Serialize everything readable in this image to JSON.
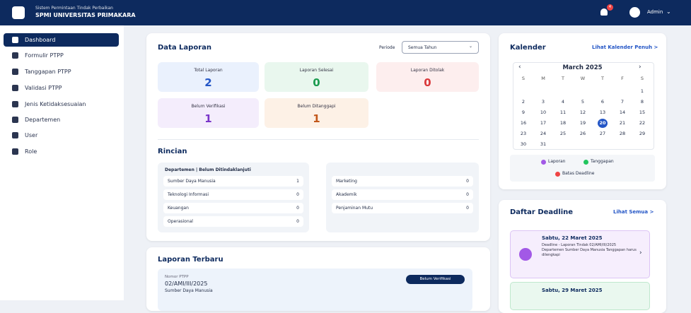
{
  "header": {
    "subtitle": "Sistem Permintaan Tindak Perbaikan",
    "title": "SPMI UNIVERSITAS PRIMAKARA",
    "notification_count": "4",
    "user": "Admin"
  },
  "sidebar": {
    "items": [
      "Dashboard",
      "Formulir PTPP",
      "Tanggapan PTPP",
      "Validasi PTPP",
      "Jenis Ketidaksesuaian",
      "Departemen",
      "User",
      "Role"
    ]
  },
  "data_laporan": {
    "title": "Data Laporan",
    "filter_label": "Periode",
    "filter_value": "Semua Tahun",
    "stats": [
      {
        "label": "Total Laporan",
        "value": "2"
      },
      {
        "label": "Laporan Selesai",
        "value": "0"
      },
      {
        "label": "Laporan Ditolak",
        "value": "0"
      },
      {
        "label": "Belum Verifikasi",
        "value": "1"
      },
      {
        "label": "Belum Ditanggapi",
        "value": "1"
      }
    ]
  },
  "rincian": {
    "title": "Rincian",
    "left_header": "Departemen | Belum Ditindaklanjuti",
    "left": [
      {
        "name": "Sumber Daya Manusia",
        "value": "1"
      },
      {
        "name": "Teknologi Informasi",
        "value": "0"
      },
      {
        "name": "Keuangan",
        "value": "0"
      },
      {
        "name": "Operasional",
        "value": "0"
      }
    ],
    "right": [
      {
        "name": "Marketing",
        "value": "0"
      },
      {
        "name": "Akademik",
        "value": "0"
      },
      {
        "name": "Penjaminan Mutu",
        "value": "0"
      }
    ]
  },
  "laporan_terbaru": {
    "title": "Laporan Terbaru",
    "items": [
      {
        "label": "Nomor PTPP",
        "number": "02/AMI/III/2025",
        "department": "Sumber Daya Manusia",
        "status": "Belum Verifikasi"
      }
    ]
  },
  "kalender": {
    "title": "Kalender",
    "link": "Lihat Kalender Penuh >",
    "month": "March 2025",
    "weekdays": [
      "S",
      "M",
      "T",
      "W",
      "T",
      "F",
      "S"
    ],
    "weeks": [
      [
        null,
        null,
        null,
        null,
        null,
        null,
        1
      ],
      [
        2,
        3,
        4,
        5,
        6,
        7,
        8
      ],
      [
        9,
        10,
        11,
        12,
        13,
        14,
        15
      ],
      [
        16,
        17,
        18,
        19,
        20,
        21,
        22
      ],
      [
        23,
        24,
        25,
        26,
        27,
        28,
        29
      ],
      [
        30,
        31,
        null,
        null,
        null,
        null,
        null
      ]
    ],
    "today": 20,
    "legend": [
      {
        "name": "Laporan",
        "color": "#a259e6"
      },
      {
        "name": "Tanggapan",
        "color": "#22c55e"
      },
      {
        "name": "Batas Deadline",
        "color": "#ef4444"
      }
    ]
  },
  "deadline": {
    "title": "Daftar Deadline",
    "link": "Lihat Semua >",
    "items": [
      {
        "date": "Sabtu, 22 Maret 2025",
        "text": "Deadline - Laporan Tindak 02/AMI/III/2025 Departemen Sumber Daya Manusia Tanggapan harus dilengkapi"
      },
      {
        "date": "Sabtu, 29 Maret 2025",
        "text": ""
      }
    ]
  }
}
